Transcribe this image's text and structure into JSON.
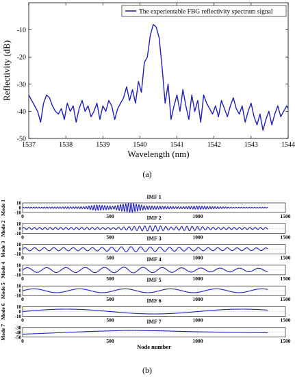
{
  "panel_a": {
    "label": "(a)"
  },
  "panel_b": {
    "label": "(b)"
  },
  "chart_data": [
    {
      "type": "line",
      "legend": {
        "entries": [
          "The experientable FBG reflectivity spectrum signal"
        ],
        "placement": "top-right"
      },
      "xlabel": "Wavelength (nm)",
      "ylabel": "Reflectivity (dB)",
      "xlim": [
        1537,
        1544
      ],
      "ylim": [
        -50,
        0
      ],
      "xticks": [
        1537,
        1538,
        1539,
        1540,
        1541,
        1542,
        1543,
        1544
      ],
      "yticks": [
        -50,
        -40,
        -30,
        -20,
        -10
      ],
      "grid": false,
      "series": [
        {
          "name": "The experientable FBG reflectivity spectrum signal",
          "color": "#1f1fb4",
          "x": [
            1537.0,
            1537.08,
            1537.16,
            1537.24,
            1537.32,
            1537.4,
            1537.48,
            1537.56,
            1537.64,
            1537.72,
            1537.8,
            1537.88,
            1537.96,
            1538.04,
            1538.12,
            1538.2,
            1538.28,
            1538.36,
            1538.44,
            1538.52,
            1538.6,
            1538.68,
            1538.76,
            1538.84,
            1538.92,
            1539.0,
            1539.08,
            1539.16,
            1539.24,
            1539.32,
            1539.4,
            1539.48,
            1539.56,
            1539.64,
            1539.72,
            1539.8,
            1539.88,
            1539.96,
            1540.04,
            1540.12,
            1540.2,
            1540.28,
            1540.36,
            1540.44,
            1540.52,
            1540.6,
            1540.68,
            1540.76,
            1540.84,
            1540.92,
            1541.0,
            1541.08,
            1541.16,
            1541.24,
            1541.32,
            1541.4,
            1541.48,
            1541.56,
            1541.64,
            1541.72,
            1541.8,
            1541.88,
            1541.96,
            1542.04,
            1542.12,
            1542.2,
            1542.28,
            1542.36,
            1542.44,
            1542.52,
            1542.6,
            1542.68,
            1542.76,
            1542.84,
            1542.92,
            1543.0,
            1543.08,
            1543.16,
            1543.24,
            1543.32,
            1543.4,
            1543.48,
            1543.56,
            1543.64,
            1543.72,
            1543.8,
            1543.88,
            1543.96,
            1544.0
          ],
          "y": [
            -34,
            -36,
            -38,
            -40,
            -44,
            -37,
            -34,
            -35,
            -38,
            -40,
            -41,
            -39,
            -43,
            -37,
            -40,
            -38,
            -44,
            -39,
            -36,
            -40,
            -38,
            -42,
            -40,
            -37,
            -43,
            -38,
            -40,
            -36,
            -38,
            -43,
            -39,
            -37,
            -35,
            -31,
            -36,
            -32,
            -37,
            -29,
            -33,
            -22,
            -20,
            -12,
            -8,
            -9,
            -13,
            -24,
            -37,
            -30,
            -43,
            -38,
            -34,
            -40,
            -32,
            -38,
            -43,
            -34,
            -40,
            -36,
            -44,
            -34,
            -37,
            -39,
            -41,
            -38,
            -42,
            -36,
            -39,
            -42,
            -38,
            -35,
            -39,
            -41,
            -38,
            -44,
            -40,
            -37,
            -42,
            -45,
            -41,
            -47,
            -43,
            -40,
            -45,
            -41,
            -38,
            -42,
            -40,
            -38,
            -39
          ]
        }
      ]
    },
    {
      "type": "line",
      "title": "IMF 1",
      "ylabel": "Mode 1",
      "xlabel": "",
      "xlim": [
        0,
        1500
      ],
      "ylim": [
        -10,
        10
      ],
      "xticks": [
        0,
        500,
        1000,
        1500
      ],
      "yticks": [
        10,
        0,
        -10
      ],
      "grid": true,
      "series": [
        {
          "name": "Mode 1",
          "color": "#1f1fb4",
          "kind": "imf",
          "x_end": 1400,
          "components": [
            {
              "amp": 1.0,
              "period": 15
            }
          ],
          "envelope": [
            [
              0,
              0.1
            ],
            [
              350,
              0.2
            ],
            [
              420,
              0.6
            ],
            [
              520,
              0.3
            ],
            [
              560,
              0.7
            ],
            [
              620,
              1.0
            ],
            [
              700,
              0.4
            ],
            [
              900,
              0.2
            ],
            [
              1000,
              0.35
            ],
            [
              1200,
              0.1
            ],
            [
              1400,
              0.1
            ]
          ]
        }
      ]
    },
    {
      "type": "line",
      "title": "IMF 2",
      "ylabel": "Mode 2",
      "xlabel": "",
      "xlim": [
        0,
        1500
      ],
      "ylim": [
        -10,
        10
      ],
      "xticks": [
        0,
        500,
        1000,
        1500
      ],
      "yticks": [
        10,
        0,
        -10
      ],
      "grid": true,
      "series": [
        {
          "name": "Mode 2",
          "color": "#1f1fb4",
          "kind": "imf",
          "x_end": 1400,
          "components": [
            {
              "amp": 0.6,
              "period": 30
            }
          ],
          "envelope": [
            [
              0,
              0.35
            ],
            [
              400,
              0.4
            ],
            [
              520,
              0.3
            ],
            [
              600,
              0.6
            ],
            [
              760,
              1.0
            ],
            [
              850,
              0.5
            ],
            [
              950,
              0.8
            ],
            [
              1100,
              0.4
            ],
            [
              1400,
              0.35
            ]
          ]
        }
      ]
    },
    {
      "type": "line",
      "title": "IMF 3",
      "ylabel": "Mode 3",
      "xlabel": "",
      "xlim": [
        0,
        1500
      ],
      "ylim": [
        -10,
        10
      ],
      "xticks": [
        0,
        500,
        1000,
        1500
      ],
      "yticks": [
        10,
        0,
        -10
      ],
      "grid": true,
      "series": [
        {
          "name": "Mode 3",
          "color": "#1f1fb4",
          "kind": "imf",
          "x_end": 1400,
          "components": [
            {
              "amp": 0.55,
              "period": 55
            }
          ],
          "envelope": [
            [
              0,
              0.6
            ],
            [
              400,
              0.6
            ],
            [
              500,
              0.8
            ],
            [
              600,
              1.0
            ],
            [
              700,
              0.9
            ],
            [
              850,
              0.8
            ],
            [
              1000,
              0.6
            ],
            [
              1400,
              0.5
            ]
          ]
        }
      ]
    },
    {
      "type": "line",
      "title": "IMF 4",
      "ylabel": "Mode 4",
      "xlabel": "",
      "xlim": [
        0,
        1500
      ],
      "ylim": [
        -10,
        10
      ],
      "xticks": [
        0,
        500,
        1000,
        1500
      ],
      "yticks": [
        10,
        0,
        -10
      ],
      "grid": true,
      "series": [
        {
          "name": "Mode 4",
          "color": "#1f1fb4",
          "kind": "imf",
          "x_end": 1400,
          "components": [
            {
              "amp": 0.6,
              "period": 110
            }
          ],
          "envelope": [
            [
              0,
              0.8
            ],
            [
              500,
              0.9
            ],
            [
              600,
              1.0
            ],
            [
              1000,
              0.7
            ],
            [
              1400,
              0.6
            ]
          ]
        }
      ]
    },
    {
      "type": "line",
      "title": "IMF 5",
      "ylabel": "Mode 5",
      "xlabel": "",
      "xlim": [
        0,
        1500
      ],
      "ylim": [
        -10,
        10
      ],
      "xticks": [
        0,
        500,
        1000,
        1500
      ],
      "yticks": [
        10,
        0,
        -10
      ],
      "grid": true,
      "series": [
        {
          "name": "Mode 5",
          "color": "#1f1fb4",
          "kind": "imf",
          "x_end": 1400,
          "components": [
            {
              "amp": 0.4,
              "period": 260
            }
          ],
          "envelope": [
            [
              0,
              1.0
            ],
            [
              1400,
              1.0
            ]
          ]
        }
      ]
    },
    {
      "type": "line",
      "title": "IMF 6",
      "ylabel": "Mode 6",
      "xlabel": "",
      "xlim": [
        0,
        1500
      ],
      "ylim": [
        -10,
        10
      ],
      "xticks": [
        0,
        500,
        1000,
        1500
      ],
      "yticks": [
        10,
        0,
        -10
      ],
      "grid": true,
      "series": [
        {
          "name": "Mode 6",
          "color": "#1f1fb4",
          "kind": "imf",
          "x_end": 1400,
          "components": [
            {
              "amp": 0.5,
              "period": 1000
            }
          ],
          "envelope": [
            [
              0,
              1.0
            ],
            [
              1400,
              1.0
            ]
          ]
        }
      ]
    },
    {
      "type": "line",
      "title": "IMF 7",
      "ylabel": "Mode 7",
      "xlabel": "Node number",
      "xlim": [
        0,
        1500
      ],
      "ylim": [
        -50,
        -30
      ],
      "xticks": [
        0,
        500,
        1000,
        1500
      ],
      "yticks": [
        -30,
        -40,
        -50
      ],
      "grid": true,
      "series": [
        {
          "name": "Mode 7",
          "color": "#1f1fb4",
          "kind": "trend",
          "x": [
            0,
            200,
            400,
            600,
            800,
            1000,
            1200,
            1400
          ],
          "y": [
            -44,
            -41,
            -38,
            -36,
            -37,
            -39,
            -40,
            -41
          ]
        }
      ]
    }
  ]
}
